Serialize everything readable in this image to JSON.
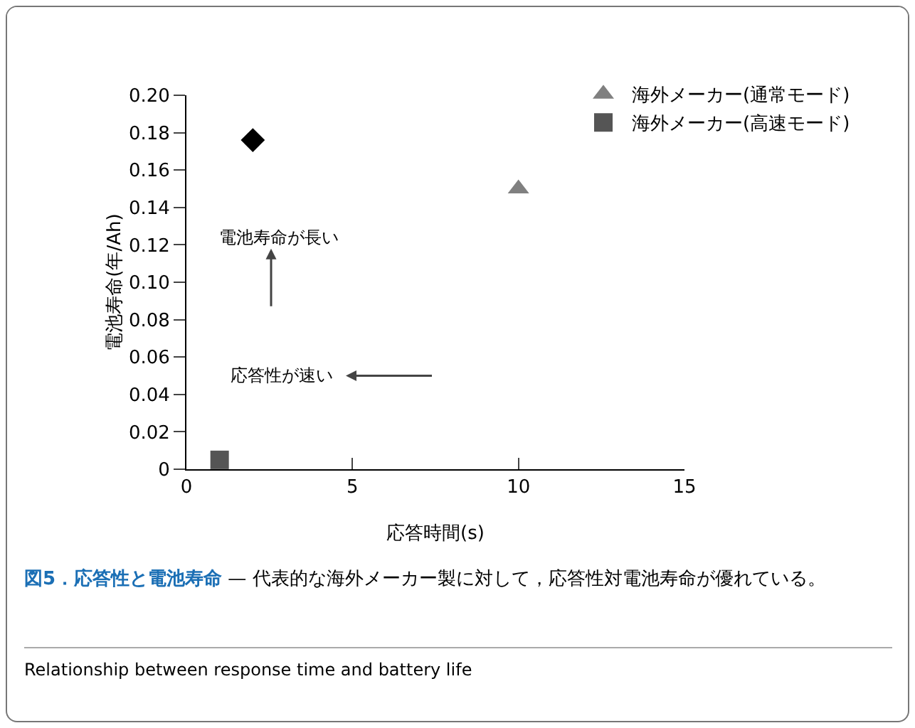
{
  "chart_data": {
    "type": "scatter",
    "title": "図5．応答性と電池寿命",
    "subtitle": "— 代表的な海外メーカー製に対して，応答性対電池寿命が優れている。",
    "xlabel": "応答時間(s)",
    "ylabel": "電池寿命(年/Ah)",
    "series": [
      {
        "color": "#000000",
        "marker": "diamond",
        "x": [
          2
        ],
        "values": [
          0.176
        ]
      },
      {
        "name": "海外メーカー(通常モード)",
        "color": "#808080",
        "marker": "triangle",
        "x": [
          10
        ],
        "values": [
          0.15
        ]
      },
      {
        "name": "海外メーカー(高速モード)",
        "color": "#555555",
        "marker": "square",
        "x": [
          1
        ],
        "values": [
          0.005
        ]
      }
    ],
    "xlim": [
      0,
      15
    ],
    "xticks": [
      0,
      5,
      10,
      15
    ],
    "ylim": [
      0,
      0.2
    ],
    "yticks": [
      {
        "value": 0,
        "label": "0"
      },
      {
        "value": 0.02,
        "label": "0.02"
      },
      {
        "value": 0.04,
        "label": "0.04"
      },
      {
        "value": 0.06,
        "label": "0.06"
      },
      {
        "value": 0.08,
        "label": "0.08"
      },
      {
        "value": 0.1,
        "label": "0.10"
      },
      {
        "value": 0.12,
        "label": "0.12"
      },
      {
        "value": 0.14,
        "label": "0.14"
      },
      {
        "value": 0.16,
        "label": "0.16"
      },
      {
        "value": 0.18,
        "label": "0.18"
      },
      {
        "value": 0.2,
        "label": "0.20"
      }
    ],
    "grid": false,
    "legend": "top right",
    "annotations": [
      "電池寿命が長い",
      "応答性が速い",
      "Relationship between response time and battery life"
    ]
  }
}
